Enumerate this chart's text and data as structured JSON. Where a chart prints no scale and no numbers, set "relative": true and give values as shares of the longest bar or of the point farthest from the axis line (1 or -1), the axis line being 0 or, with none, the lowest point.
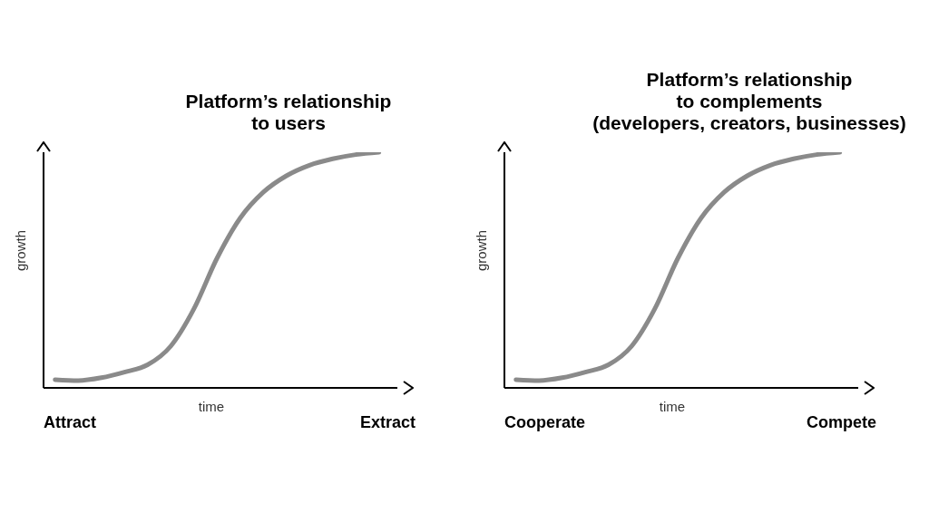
{
  "chart_data": [
    {
      "type": "line",
      "title": "Platform’s relationship\nto users",
      "xlabel": "time",
      "ylabel": "growth",
      "relative": true,
      "tick_labels": false,
      "marker": "none",
      "line_style": "solid",
      "categories": [
        null,
        null,
        null,
        null,
        null,
        null,
        null,
        null,
        null,
        null,
        null,
        null,
        null,
        null,
        null
      ],
      "series": [
        {
          "color": "#8a8a8a",
          "values": [
            0.035,
            0.031,
            0.043,
            0.067,
            0.098,
            0.177,
            0.335,
            0.55,
            0.72,
            0.83,
            0.9,
            0.945,
            0.972,
            0.99,
            1
          ]
        }
      ],
      "annotations": [
        "Attract",
        "Extract"
      ]
    },
    {
      "type": "line",
      "title": "Platform’s relationship\nto complements\n(developers, creators, businesses)",
      "xlabel": "time",
      "ylabel": "growth",
      "relative": true,
      "tick_labels": false,
      "marker": "none",
      "line_style": "solid",
      "categories": [
        null,
        null,
        null,
        null,
        null,
        null,
        null,
        null,
        null,
        null,
        null,
        null,
        null,
        null,
        null
      ],
      "series": [
        {
          "color": "#8a8a8a",
          "values": [
            0.035,
            0.031,
            0.043,
            0.067,
            0.098,
            0.177,
            0.335,
            0.55,
            0.72,
            0.83,
            0.9,
            0.945,
            0.972,
            0.99,
            1
          ]
        }
      ],
      "annotations": [
        "Cooperate",
        "Compete"
      ]
    }
  ]
}
